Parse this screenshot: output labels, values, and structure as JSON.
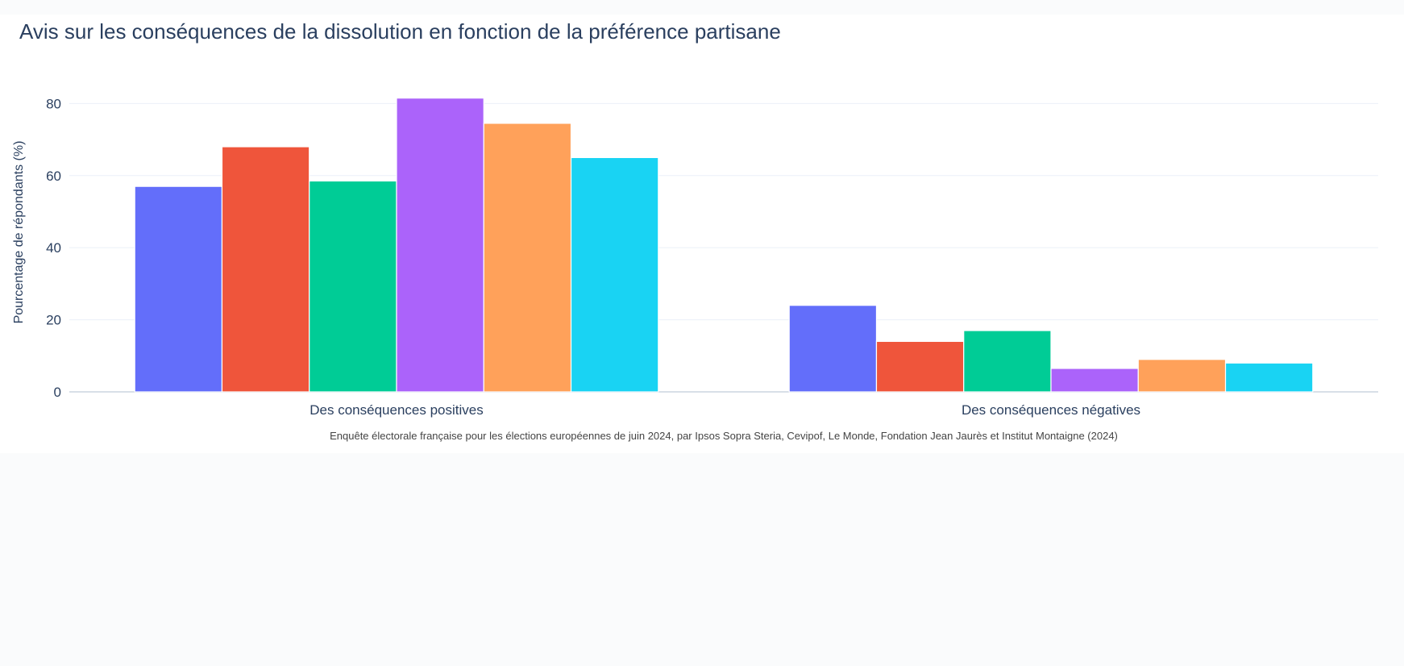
{
  "chart_data": {
    "type": "bar",
    "title": "Avis sur les conséquences de la dissolution en fonction de la préférence partisane",
    "xlabel": "",
    "ylabel": "Pourcentage de répondants (%)",
    "source_note": "Enquête électorale française pour les élections européennes de juin 2024, par Ipsos Sopra Steria, Cevipof, Le Monde, Fondation Jean Jaurès et Institut Montaigne (2024)",
    "categories": [
      "Des conséquences positives",
      "Des conséquences négatives"
    ],
    "ylim": [
      0,
      85
    ],
    "yticks": [
      0,
      20,
      40,
      60,
      80
    ],
    "grid": true,
    "legend": "none",
    "series": [
      {
        "color": "#636efa",
        "values": [
          57,
          24
        ]
      },
      {
        "color": "#ef553b",
        "values": [
          68,
          14
        ]
      },
      {
        "color": "#00cc96",
        "values": [
          58.5,
          17
        ]
      },
      {
        "color": "#ab63fa",
        "values": [
          81.5,
          6.5
        ]
      },
      {
        "color": "#ffa15a",
        "values": [
          74.5,
          9
        ]
      },
      {
        "color": "#19d3f3",
        "values": [
          65,
          8
        ]
      }
    ]
  }
}
